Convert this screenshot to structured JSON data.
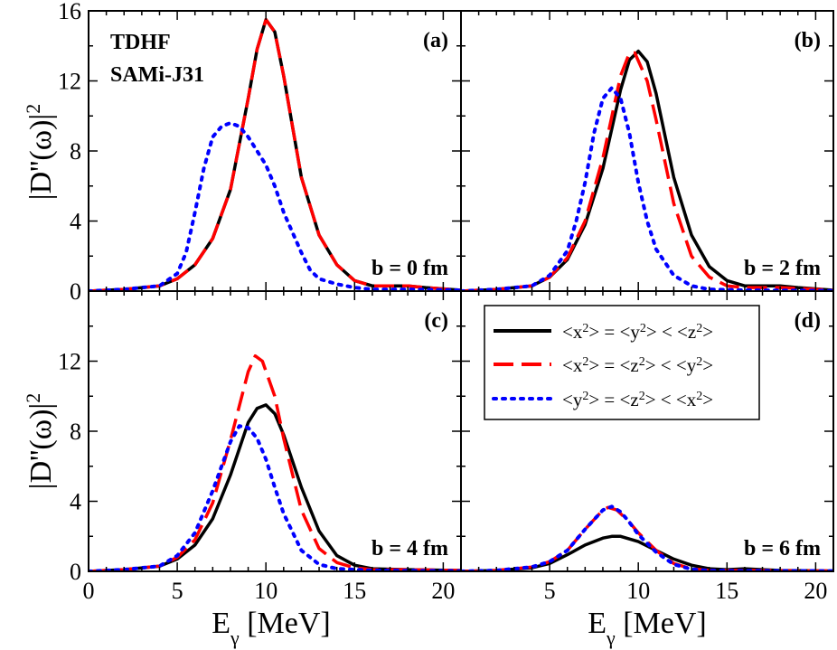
{
  "figure": {
    "method_line1": "TDHF",
    "method_line2": "SAMi-J31",
    "x_axis_title": "E",
    "x_axis_subscript": "γ",
    "x_axis_unit": " [MeV]",
    "y_axis_title": "|D''(ω)|",
    "y_axis_superscript": "2"
  },
  "legend": {
    "entries": [
      {
        "series": "s1",
        "parts": [
          "<x",
          "2",
          "> = <y",
          "2",
          "> < <z",
          "2",
          ">"
        ]
      },
      {
        "series": "s2",
        "parts": [
          "<x",
          "2",
          "> = <z",
          "2",
          "> < <y",
          "2",
          ">"
        ]
      },
      {
        "series": "s3",
        "parts": [
          "<y",
          "2",
          "> = <z",
          "2",
          "> < <x",
          "2",
          ">"
        ]
      }
    ]
  },
  "chart_data": [
    {
      "type": "line",
      "panel": "(a)",
      "annotation": "b = 0 fm",
      "xlim": [
        0,
        21
      ],
      "ylim": [
        0,
        16
      ],
      "x_ticks": [
        0,
        5,
        10,
        15,
        20
      ],
      "y_ticks": [
        0,
        4,
        8,
        12,
        16
      ],
      "series": [
        {
          "name": "<x2> = <y2> < <z2>",
          "color": "#000000",
          "style": "solid",
          "points": [
            [
              0,
              0
            ],
            [
              2,
              0.1
            ],
            [
              4,
              0.3
            ],
            [
              5,
              0.7
            ],
            [
              6,
              1.5
            ],
            [
              7,
              3.0
            ],
            [
              8,
              5.8
            ],
            [
              9,
              11.0
            ],
            [
              9.5,
              13.8
            ],
            [
              10,
              15.5
            ],
            [
              10.5,
              14.8
            ],
            [
              11,
              12.3
            ],
            [
              12,
              6.5
            ],
            [
              13,
              3.2
            ],
            [
              14,
              1.5
            ],
            [
              15,
              0.6
            ],
            [
              16,
              0.3
            ],
            [
              18,
              0.3
            ],
            [
              19,
              0.2
            ],
            [
              21,
              0.05
            ]
          ]
        },
        {
          "name": "<x2> = <z2> < <y2>",
          "color": "#ff0000",
          "style": "dashed",
          "points": [
            [
              0,
              0
            ],
            [
              2,
              0.1
            ],
            [
              4,
              0.3
            ],
            [
              5,
              0.7
            ],
            [
              6,
              1.5
            ],
            [
              7,
              3.0
            ],
            [
              8,
              5.8
            ],
            [
              9,
              11.0
            ],
            [
              9.5,
              13.8
            ],
            [
              10,
              15.5
            ],
            [
              10.5,
              14.8
            ],
            [
              11,
              12.3
            ],
            [
              12,
              6.5
            ],
            [
              13,
              3.2
            ],
            [
              14,
              1.5
            ],
            [
              15,
              0.6
            ],
            [
              16,
              0.3
            ],
            [
              18,
              0.3
            ],
            [
              19,
              0.2
            ],
            [
              21,
              0.05
            ]
          ]
        },
        {
          "name": "<y2> = <z2> < <x2>",
          "color": "#0000ff",
          "style": "dotted",
          "points": [
            [
              0,
              0
            ],
            [
              2,
              0.1
            ],
            [
              4,
              0.3
            ],
            [
              5,
              1.0
            ],
            [
              5.5,
              2.2
            ],
            [
              6,
              4.5
            ],
            [
              6.5,
              7.0
            ],
            [
              7,
              8.8
            ],
            [
              7.5,
              9.4
            ],
            [
              8,
              9.6
            ],
            [
              8.5,
              9.4
            ],
            [
              9,
              8.8
            ],
            [
              9.5,
              8.0
            ],
            [
              10,
              7.2
            ],
            [
              10.5,
              6.0
            ],
            [
              11,
              4.5
            ],
            [
              12,
              2.2
            ],
            [
              12.5,
              1.2
            ],
            [
              13,
              0.7
            ],
            [
              14,
              0.4
            ],
            [
              15,
              0.2
            ],
            [
              16,
              0.1
            ],
            [
              18,
              0.1
            ],
            [
              21,
              0.05
            ]
          ]
        }
      ]
    },
    {
      "type": "line",
      "panel": "(b)",
      "annotation": "b = 2 fm",
      "xlim": [
        0,
        21
      ],
      "ylim": [
        0,
        16
      ],
      "x_ticks": [
        0,
        5,
        10,
        15,
        20
      ],
      "y_ticks": [
        0,
        4,
        8,
        12,
        16
      ],
      "series": [
        {
          "name": "<x2> = <y2> < <z2>",
          "color": "#000000",
          "style": "solid",
          "points": [
            [
              0,
              0
            ],
            [
              2,
              0.1
            ],
            [
              4,
              0.3
            ],
            [
              5,
              0.8
            ],
            [
              6,
              1.8
            ],
            [
              7,
              3.8
            ],
            [
              8,
              7.0
            ],
            [
              9,
              11.5
            ],
            [
              9.5,
              13.2
            ],
            [
              10,
              13.7
            ],
            [
              10.5,
              13.1
            ],
            [
              11,
              11.3
            ],
            [
              12,
              6.5
            ],
            [
              13,
              3.2
            ],
            [
              14,
              1.4
            ],
            [
              15,
              0.6
            ],
            [
              16,
              0.3
            ],
            [
              18,
              0.3
            ],
            [
              19,
              0.2
            ],
            [
              21,
              0.05
            ]
          ]
        },
        {
          "name": "<x2> = <z2> < <y2>",
          "color": "#ff0000",
          "style": "dashed",
          "points": [
            [
              0,
              0
            ],
            [
              2,
              0.1
            ],
            [
              4,
              0.3
            ],
            [
              5,
              0.8
            ],
            [
              6,
              1.9
            ],
            [
              7,
              4.0
            ],
            [
              8,
              7.6
            ],
            [
              9,
              12.3
            ],
            [
              9.5,
              13.6
            ],
            [
              9.8,
              13.6
            ],
            [
              10.5,
              12.0
            ],
            [
              11,
              9.8
            ],
            [
              12,
              5.0
            ],
            [
              13,
              2.0
            ],
            [
              14,
              0.8
            ],
            [
              15,
              0.3
            ],
            [
              16,
              0.2
            ],
            [
              18,
              0.2
            ],
            [
              21,
              0.05
            ]
          ]
        },
        {
          "name": "<y2> = <z2> < <x2>",
          "color": "#0000ff",
          "style": "dotted",
          "points": [
            [
              0,
              0
            ],
            [
              2,
              0.1
            ],
            [
              4,
              0.3
            ],
            [
              5,
              0.9
            ],
            [
              6,
              2.3
            ],
            [
              6.5,
              4.0
            ],
            [
              7,
              6.2
            ],
            [
              7.5,
              9.0
            ],
            [
              8,
              11.0
            ],
            [
              8.5,
              11.6
            ],
            [
              9,
              11.0
            ],
            [
              9.5,
              9.0
            ],
            [
              10,
              6.2
            ],
            [
              10.5,
              4.0
            ],
            [
              11,
              2.4
            ],
            [
              12,
              0.9
            ],
            [
              13,
              0.3
            ],
            [
              14,
              0.1
            ],
            [
              16,
              0.05
            ],
            [
              21,
              0.02
            ]
          ]
        }
      ]
    },
    {
      "type": "line",
      "panel": "(c)",
      "annotation": "b = 4 fm",
      "xlim": [
        0,
        21
      ],
      "ylim": [
        0,
        16
      ],
      "x_ticks": [
        0,
        5,
        10,
        15,
        20
      ],
      "y_ticks": [
        0,
        4,
        8,
        12
      ],
      "series": [
        {
          "name": "<x2> = <y2> < <z2>",
          "color": "#000000",
          "style": "solid",
          "points": [
            [
              0,
              0
            ],
            [
              2,
              0.1
            ],
            [
              4,
              0.3
            ],
            [
              5,
              0.7
            ],
            [
              6,
              1.5
            ],
            [
              7,
              3.0
            ],
            [
              8,
              5.5
            ],
            [
              9,
              8.5
            ],
            [
              9.5,
              9.3
            ],
            [
              10,
              9.5
            ],
            [
              10.5,
              9.0
            ],
            [
              11,
              7.8
            ],
            [
              12,
              4.8
            ],
            [
              13,
              2.3
            ],
            [
              14,
              0.9
            ],
            [
              15,
              0.35
            ],
            [
              16,
              0.15
            ],
            [
              18,
              0.1
            ],
            [
              21,
              0.05
            ]
          ]
        },
        {
          "name": "<x2> = <z2> < <y2>",
          "color": "#ff0000",
          "style": "dashed",
          "points": [
            [
              0,
              0
            ],
            [
              2,
              0.1
            ],
            [
              4,
              0.3
            ],
            [
              5,
              0.8
            ],
            [
              6,
              1.8
            ],
            [
              7,
              3.9
            ],
            [
              8,
              7.5
            ],
            [
              9,
              11.4
            ],
            [
              9.4,
              12.3
            ],
            [
              9.8,
              12.0
            ],
            [
              10.5,
              10.0
            ],
            [
              11,
              7.6
            ],
            [
              12,
              3.5
            ],
            [
              13,
              1.3
            ],
            [
              14,
              0.5
            ],
            [
              15,
              0.2
            ],
            [
              16,
              0.1
            ],
            [
              18,
              0.1
            ],
            [
              21,
              0.05
            ]
          ]
        },
        {
          "name": "<y2> = <z2> < <x2>",
          "color": "#0000ff",
          "style": "dotted",
          "points": [
            [
              0,
              0
            ],
            [
              2,
              0.1
            ],
            [
              4,
              0.3
            ],
            [
              5,
              0.9
            ],
            [
              6,
              2.2
            ],
            [
              7,
              4.6
            ],
            [
              8,
              7.4
            ],
            [
              8.5,
              8.3
            ],
            [
              9,
              8.2
            ],
            [
              9.5,
              7.6
            ],
            [
              10,
              6.4
            ],
            [
              10.5,
              4.8
            ],
            [
              11,
              3.3
            ],
            [
              12,
              1.2
            ],
            [
              13,
              0.4
            ],
            [
              14,
              0.15
            ],
            [
              16,
              0.05
            ],
            [
              21,
              0.02
            ]
          ]
        }
      ]
    },
    {
      "type": "line",
      "panel": "(d)",
      "annotation": "b = 6 fm",
      "xlim": [
        0,
        21
      ],
      "ylim": [
        0,
        16
      ],
      "x_ticks": [
        5,
        10,
        15,
        20
      ],
      "y_ticks": [
        0,
        4,
        8,
        12
      ],
      "series": [
        {
          "name": "<x2> = <y2> < <z2>",
          "color": "#000000",
          "style": "solid",
          "points": [
            [
              0,
              0
            ],
            [
              2,
              0.05
            ],
            [
              4,
              0.2
            ],
            [
              5,
              0.45
            ],
            [
              6,
              0.95
            ],
            [
              7,
              1.5
            ],
            [
              8,
              1.9
            ],
            [
              8.5,
              2.0
            ],
            [
              9,
              2.0
            ],
            [
              10,
              1.7
            ],
            [
              11,
              1.2
            ],
            [
              12,
              0.7
            ],
            [
              13,
              0.35
            ],
            [
              14,
              0.15
            ],
            [
              15,
              0.1
            ],
            [
              16,
              0.15
            ],
            [
              17,
              0.1
            ],
            [
              18,
              0.05
            ],
            [
              21,
              0.02
            ]
          ]
        },
        {
          "name": "<x2> = <z2> < <y2>",
          "color": "#ff0000",
          "style": "dashed",
          "points": [
            [
              0,
              0
            ],
            [
              2,
              0.05
            ],
            [
              4,
              0.25
            ],
            [
              5,
              0.55
            ],
            [
              6,
              1.2
            ],
            [
              7,
              2.4
            ],
            [
              8,
              3.5
            ],
            [
              8.3,
              3.65
            ],
            [
              8.8,
              3.5
            ],
            [
              9.5,
              2.8
            ],
            [
              10,
              2.2
            ],
            [
              11,
              1.2
            ],
            [
              12,
              0.45
            ],
            [
              13,
              0.15
            ],
            [
              14,
              0.05
            ],
            [
              16,
              0.05
            ],
            [
              21,
              0.02
            ]
          ]
        },
        {
          "name": "<y2> = <z2> < <x2>",
          "color": "#0000ff",
          "style": "dotted",
          "points": [
            [
              0,
              0
            ],
            [
              2,
              0.05
            ],
            [
              4,
              0.25
            ],
            [
              5,
              0.55
            ],
            [
              6,
              1.2
            ],
            [
              7,
              2.4
            ],
            [
              8,
              3.5
            ],
            [
              8.5,
              3.7
            ],
            [
              9,
              3.4
            ],
            [
              9.5,
              2.8
            ],
            [
              10,
              2.1
            ],
            [
              11,
              1.1
            ],
            [
              12,
              0.4
            ],
            [
              13,
              0.12
            ],
            [
              14,
              0.04
            ],
            [
              16,
              0.03
            ],
            [
              21,
              0.02
            ]
          ]
        }
      ]
    }
  ]
}
